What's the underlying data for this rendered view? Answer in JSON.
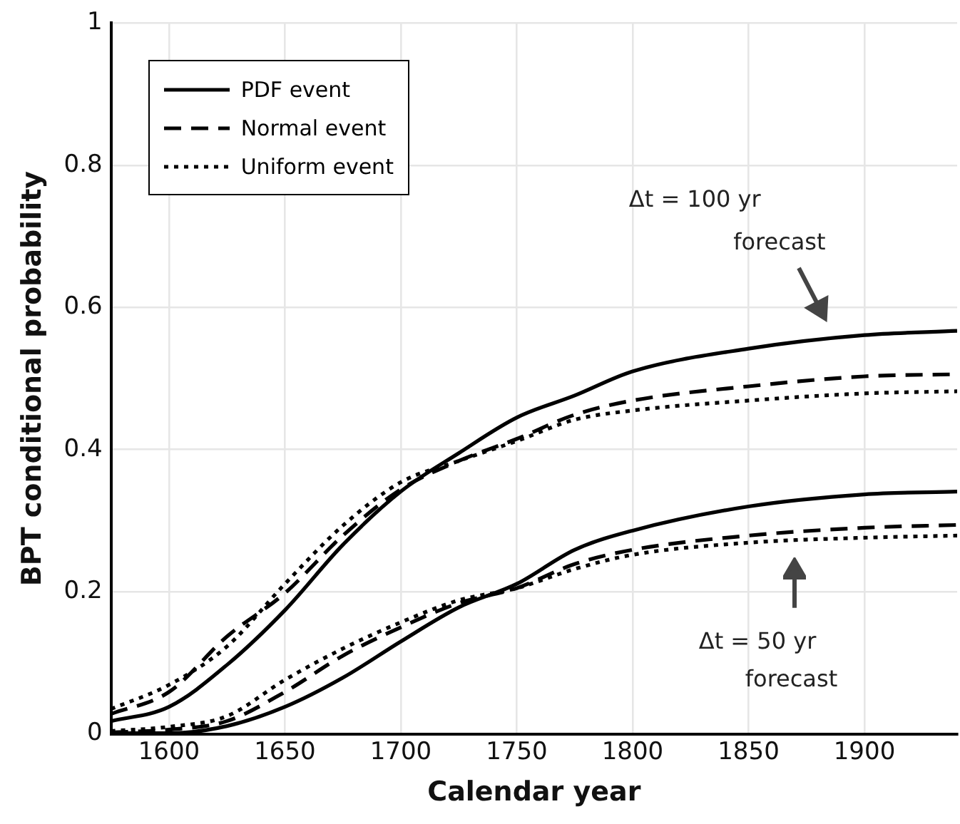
{
  "chart_data": {
    "type": "line",
    "xlabel": "Calendar year",
    "ylabel": "BPT conditional probability",
    "xlim": [
      1575,
      1940
    ],
    "xticks": [
      1600,
      1650,
      1700,
      1750,
      1800,
      1850,
      1900
    ],
    "ylim": [
      0,
      1
    ],
    "yticks": [
      0,
      0.2,
      0.4,
      0.6,
      0.8,
      1
    ],
    "grid": true,
    "legend": "top left",
    "marker": "none",
    "x": [
      1575,
      1600,
      1625,
      1650,
      1675,
      1700,
      1725,
      1750,
      1775,
      1800,
      1850,
      1900,
      1940
    ],
    "series": [
      {
        "name": "PDF event",
        "color": "#000000",
        "line_style": "solid",
        "values": [
          0.018,
          0.038,
          0.097,
          0.174,
          0.266,
          0.341,
          0.395,
          0.445,
          0.476,
          0.51,
          0.542,
          0.561,
          0.567
        ]
      },
      {
        "name": "Normal event",
        "color": "#000000",
        "line_style": "dashed",
        "values": [
          0.028,
          0.059,
          0.137,
          0.198,
          0.279,
          0.344,
          0.384,
          0.415,
          0.449,
          0.469,
          0.489,
          0.503,
          0.506
        ]
      },
      {
        "name": "Uniform event",
        "color": "#000000",
        "line_style": "dotted",
        "values": [
          0.035,
          0.069,
          0.123,
          0.211,
          0.293,
          0.354,
          0.384,
          0.412,
          0.442,
          0.455,
          0.469,
          0.479,
          0.482
        ]
      },
      {
        "color": "#000000",
        "line_style": "solid",
        "values": [
          0.001,
          0.001,
          0.011,
          0.038,
          0.079,
          0.13,
          0.178,
          0.211,
          0.259,
          0.286,
          0.32,
          0.337,
          0.341
        ]
      },
      {
        "color": "#000000",
        "line_style": "dashed",
        "values": [
          0.002,
          0.006,
          0.018,
          0.059,
          0.11,
          0.15,
          0.184,
          0.205,
          0.239,
          0.259,
          0.279,
          0.29,
          0.294
        ]
      },
      {
        "color": "#000000",
        "line_style": "dotted",
        "values": [
          0.004,
          0.01,
          0.025,
          0.076,
          0.12,
          0.157,
          0.188,
          0.205,
          0.232,
          0.252,
          0.269,
          0.276,
          0.279
        ]
      }
    ],
    "annotations": [
      "Δt = 100 yr\nforecast",
      "Δt = 50 yr\nforecast"
    ]
  }
}
